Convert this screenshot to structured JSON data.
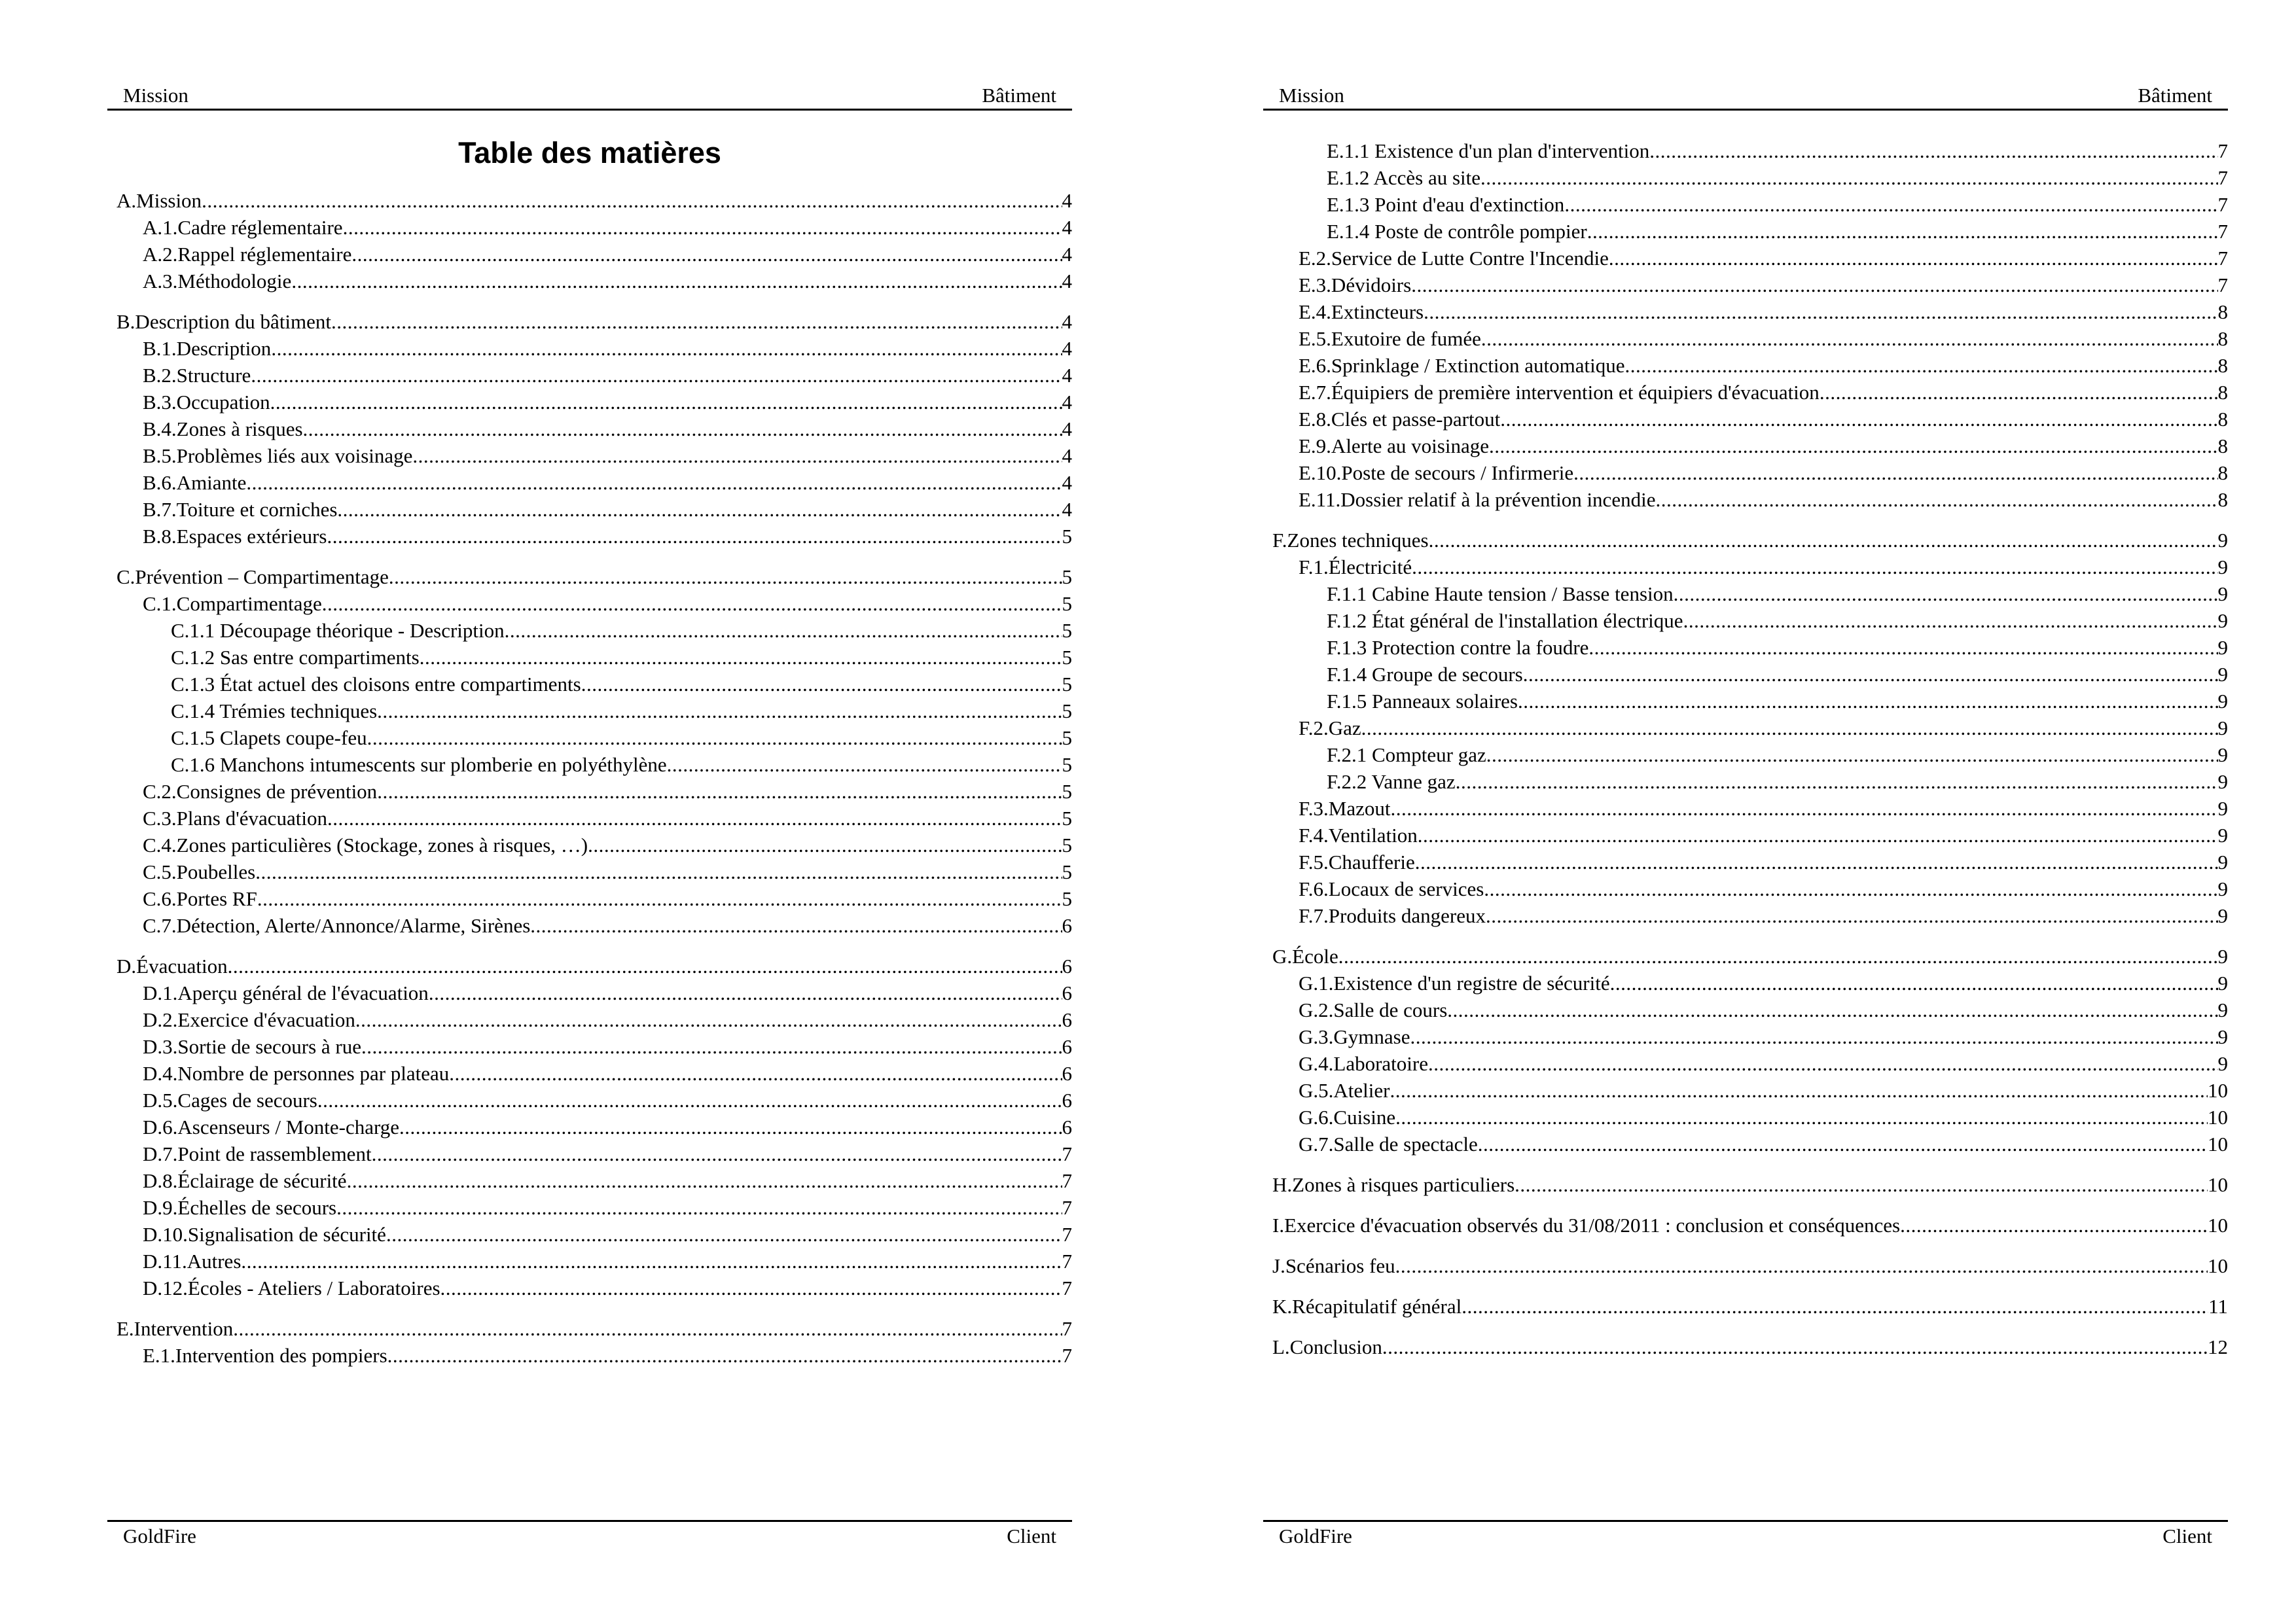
{
  "pages": [
    {
      "header": {
        "left": "Mission",
        "right": "Bâtiment"
      },
      "footer": {
        "left": "GoldFire",
        "right": "Client"
      },
      "title": "Table des matières",
      "entries": [
        {
          "level": 0,
          "text": "A.Mission",
          "page": "4"
        },
        {
          "level": 1,
          "text": "A.1.Cadre réglementaire",
          "page": "4"
        },
        {
          "level": 1,
          "text": "A.2.Rappel réglementaire",
          "page": "4"
        },
        {
          "level": 1,
          "text": "A.3.Méthodologie",
          "page": "4"
        },
        {
          "level": 0,
          "text": "B.Description du bâtiment",
          "page": "4"
        },
        {
          "level": 1,
          "text": "B.1.Description",
          "page": "4"
        },
        {
          "level": 1,
          "text": "B.2.Structure",
          "page": "4"
        },
        {
          "level": 1,
          "text": "B.3.Occupation",
          "page": "4"
        },
        {
          "level": 1,
          "text": "B.4.Zones à risques",
          "page": "4"
        },
        {
          "level": 1,
          "text": "B.5.Problèmes liés aux voisinage",
          "page": "4"
        },
        {
          "level": 1,
          "text": "B.6.Amiante",
          "page": "4"
        },
        {
          "level": 1,
          "text": "B.7.Toiture et corniches",
          "page": "4"
        },
        {
          "level": 1,
          "text": "B.8.Espaces extérieurs",
          "page": "5"
        },
        {
          "level": 0,
          "text": "C.Prévention – Compartimentage",
          "page": "5"
        },
        {
          "level": 1,
          "text": "C.1.Compartimentage",
          "page": "5"
        },
        {
          "level": 2,
          "text": "C.1.1 Découpage théorique - Description",
          "page": "5"
        },
        {
          "level": 2,
          "text": "C.1.2 Sas entre compartiments",
          "page": "5"
        },
        {
          "level": 2,
          "text": "C.1.3 État actuel des cloisons entre compartiments",
          "page": "5"
        },
        {
          "level": 2,
          "text": "C.1.4 Trémies techniques",
          "page": "5"
        },
        {
          "level": 2,
          "text": "C.1.5 Clapets coupe-feu",
          "page": "5"
        },
        {
          "level": 2,
          "text": "C.1.6 Manchons intumescents sur plomberie en polyéthylène",
          "page": "5"
        },
        {
          "level": 1,
          "text": "C.2.Consignes de prévention",
          "page": "5"
        },
        {
          "level": 1,
          "text": "C.3.Plans d'évacuation",
          "page": "5"
        },
        {
          "level": 1,
          "text": "C.4.Zones particulières (Stockage, zones à risques, …)",
          "page": "5"
        },
        {
          "level": 1,
          "text": "C.5.Poubelles",
          "page": "5"
        },
        {
          "level": 1,
          "text": "C.6.Portes RF",
          "page": "5"
        },
        {
          "level": 1,
          "text": "C.7.Détection, Alerte/Annonce/Alarme, Sirènes",
          "page": "6"
        },
        {
          "level": 0,
          "text": "D.Évacuation",
          "page": "6"
        },
        {
          "level": 1,
          "text": "D.1.Aperçu général de l'évacuation",
          "page": "6"
        },
        {
          "level": 1,
          "text": "D.2.Exercice d'évacuation",
          "page": "6"
        },
        {
          "level": 1,
          "text": "D.3.Sortie de secours à rue",
          "page": "6"
        },
        {
          "level": 1,
          "text": "D.4.Nombre de personnes par plateau",
          "page": "6"
        },
        {
          "level": 1,
          "text": "D.5.Cages de secours",
          "page": "6"
        },
        {
          "level": 1,
          "text": "D.6.Ascenseurs / Monte-charge",
          "page": "6"
        },
        {
          "level": 1,
          "text": "D.7.Point de rassemblement",
          "page": "7"
        },
        {
          "level": 1,
          "text": "D.8.Éclairage de sécurité",
          "page": "7"
        },
        {
          "level": 1,
          "text": "D.9.Échelles de secours",
          "page": "7"
        },
        {
          "level": 1,
          "text": "D.10.Signalisation de sécurité",
          "page": "7"
        },
        {
          "level": 1,
          "text": "D.11.Autres",
          "page": "7"
        },
        {
          "level": 1,
          "text": "D.12.Écoles - Ateliers / Laboratoires",
          "page": "7"
        },
        {
          "level": 0,
          "text": "E.Intervention",
          "page": "7"
        },
        {
          "level": 1,
          "text": "E.1.Intervention des pompiers",
          "page": "7"
        }
      ]
    },
    {
      "header": {
        "left": "Mission",
        "right": "Bâtiment"
      },
      "footer": {
        "left": "GoldFire",
        "right": "Client"
      },
      "entries": [
        {
          "level": 2,
          "text": "E.1.1 Existence d'un plan d'intervention",
          "page": "7"
        },
        {
          "level": 2,
          "text": "E.1.2 Accès au site",
          "page": "7"
        },
        {
          "level": 2,
          "text": "E.1.3 Point d'eau d'extinction",
          "page": "7"
        },
        {
          "level": 2,
          "text": "E.1.4 Poste de contrôle pompier",
          "page": "7"
        },
        {
          "level": 1,
          "text": "E.2.Service de Lutte Contre l'Incendie",
          "page": "7"
        },
        {
          "level": 1,
          "text": "E.3.Dévidoirs",
          "page": "7"
        },
        {
          "level": 1,
          "text": "E.4.Extincteurs",
          "page": "8"
        },
        {
          "level": 1,
          "text": "E.5.Exutoire de fumée",
          "page": "8"
        },
        {
          "level": 1,
          "text": "E.6.Sprinklage / Extinction automatique",
          "page": "8"
        },
        {
          "level": 1,
          "text": "E.7.Équipiers de première intervention et équipiers d'évacuation",
          "page": "8"
        },
        {
          "level": 1,
          "text": "E.8.Clés et passe-partout",
          "page": "8"
        },
        {
          "level": 1,
          "text": "E.9.Alerte au voisinage",
          "page": "8"
        },
        {
          "level": 1,
          "text": "E.10.Poste de secours / Infirmerie",
          "page": "8"
        },
        {
          "level": 1,
          "text": "E.11.Dossier relatif à la prévention incendie",
          "page": "8"
        },
        {
          "level": 0,
          "text": "F.Zones techniques",
          "page": "9"
        },
        {
          "level": 1,
          "text": "F.1.Électricité",
          "page": "9"
        },
        {
          "level": 2,
          "text": "F.1.1 Cabine Haute tension / Basse tension",
          "page": "9"
        },
        {
          "level": 2,
          "text": "F.1.2 État général de l'installation électrique",
          "page": "9"
        },
        {
          "level": 2,
          "text": "F.1.3 Protection contre la foudre",
          "page": "9"
        },
        {
          "level": 2,
          "text": "F.1.4 Groupe de secours",
          "page": "9"
        },
        {
          "level": 2,
          "text": "F.1.5 Panneaux solaires",
          "page": "9"
        },
        {
          "level": 1,
          "text": "F.2.Gaz",
          "page": "9"
        },
        {
          "level": 2,
          "text": "F.2.1 Compteur gaz",
          "page": "9"
        },
        {
          "level": 2,
          "text": "F.2.2 Vanne gaz",
          "page": "9"
        },
        {
          "level": 1,
          "text": "F.3.Mazout",
          "page": "9"
        },
        {
          "level": 1,
          "text": "F.4.Ventilation",
          "page": "9"
        },
        {
          "level": 1,
          "text": "F.5.Chaufferie",
          "page": "9"
        },
        {
          "level": 1,
          "text": "F.6.Locaux de services",
          "page": "9"
        },
        {
          "level": 1,
          "text": "F.7.Produits dangereux",
          "page": "9"
        },
        {
          "level": 0,
          "text": "G.École",
          "page": "9"
        },
        {
          "level": 1,
          "text": "G.1.Existence d'un registre de sécurité",
          "page": "9"
        },
        {
          "level": 1,
          "text": "G.2.Salle de cours",
          "page": "9"
        },
        {
          "level": 1,
          "text": "G.3.Gymnase",
          "page": "9"
        },
        {
          "level": 1,
          "text": "G.4.Laboratoire",
          "page": "9"
        },
        {
          "level": 1,
          "text": "G.5.Atelier",
          "page": "10"
        },
        {
          "level": 1,
          "text": "G.6.Cuisine",
          "page": "10"
        },
        {
          "level": 1,
          "text": "G.7.Salle de spectacle",
          "page": "10"
        },
        {
          "level": 0,
          "text": "H.Zones à risques particuliers",
          "page": "10"
        },
        {
          "level": 0,
          "text": "I.Exercice d'évacuation observés du 31/08/2011 : conclusion et conséquences",
          "page": "10"
        },
        {
          "level": 0,
          "text": "J.Scénarios feu",
          "page": "10"
        },
        {
          "level": 0,
          "text": "K.Récapitulatif général",
          "page": "11"
        },
        {
          "level": 0,
          "text": "L.Conclusion",
          "page": "12"
        }
      ]
    }
  ]
}
